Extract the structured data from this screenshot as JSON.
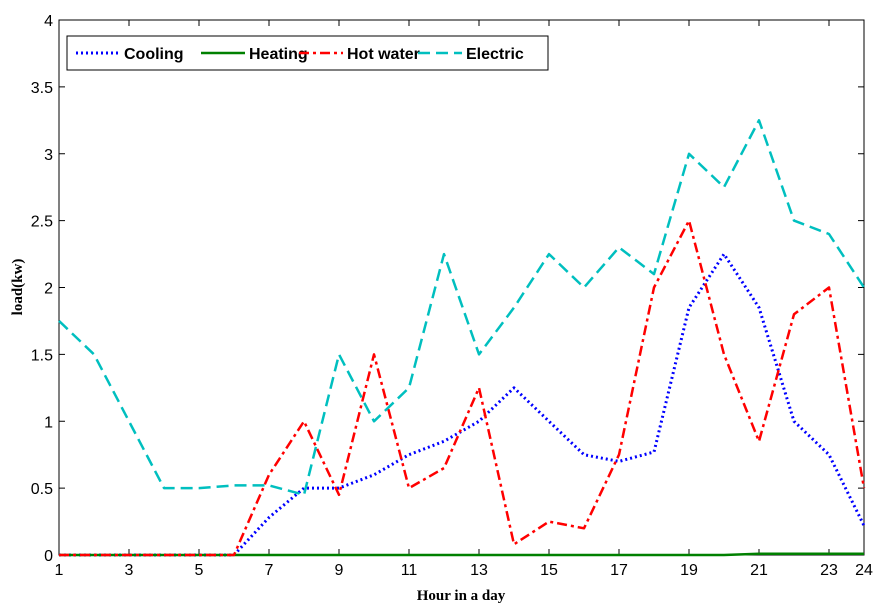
{
  "chart_data": {
    "type": "line",
    "title": "",
    "xlabel": "Hour in a day",
    "ylabel": "load(kw)",
    "xlim": [
      1,
      24
    ],
    "ylim": [
      0,
      4
    ],
    "xticks": [
      1,
      3,
      5,
      7,
      9,
      11,
      13,
      15,
      17,
      19,
      21,
      23,
      24
    ],
    "yticks": [
      0,
      0.5,
      1,
      1.5,
      2,
      2.5,
      3,
      3.5,
      4
    ],
    "grid": false,
    "legend_position": "top-left",
    "x": [
      1,
      2,
      3,
      4,
      5,
      6,
      7,
      8,
      9,
      10,
      11,
      12,
      13,
      14,
      15,
      16,
      17,
      18,
      19,
      20,
      21,
      22,
      23,
      24
    ],
    "series": [
      {
        "name": "Cooling",
        "color": "#0000ff",
        "style": "dotted",
        "values": [
          0,
          0,
          0,
          0,
          0,
          0,
          0.28,
          0.5,
          0.5,
          0.6,
          0.75,
          0.85,
          1.0,
          1.25,
          1.0,
          0.75,
          0.7,
          0.77,
          1.85,
          2.25,
          1.85,
          1.0,
          0.75,
          0.22
        ]
      },
      {
        "name": "Heating",
        "color": "#008000",
        "style": "solid",
        "values": [
          0,
          0,
          0,
          0,
          0,
          0,
          0,
          0,
          0,
          0,
          0,
          0,
          0,
          0,
          0,
          0,
          0,
          0,
          0,
          0,
          0.01,
          0.01,
          0.01,
          0.01
        ]
      },
      {
        "name": "Hot water",
        "color": "#ff0000",
        "style": "dashdot",
        "values": [
          0,
          0,
          0,
          0,
          0,
          0,
          0.6,
          1.0,
          0.45,
          1.5,
          0.5,
          0.65,
          1.25,
          0.08,
          0.25,
          0.2,
          0.75,
          2.0,
          2.5,
          1.5,
          0.85,
          1.8,
          2.0,
          0.5
        ]
      },
      {
        "name": "Electric",
        "color": "#00bfbf",
        "style": "dashed",
        "values": [
          1.75,
          1.5,
          1.0,
          0.5,
          0.5,
          0.52,
          0.52,
          0.45,
          1.5,
          1.0,
          1.25,
          2.25,
          1.5,
          1.85,
          2.25,
          2.0,
          2.3,
          2.1,
          3.0,
          2.75,
          3.25,
          2.5,
          2.4,
          2.0
        ]
      }
    ]
  }
}
